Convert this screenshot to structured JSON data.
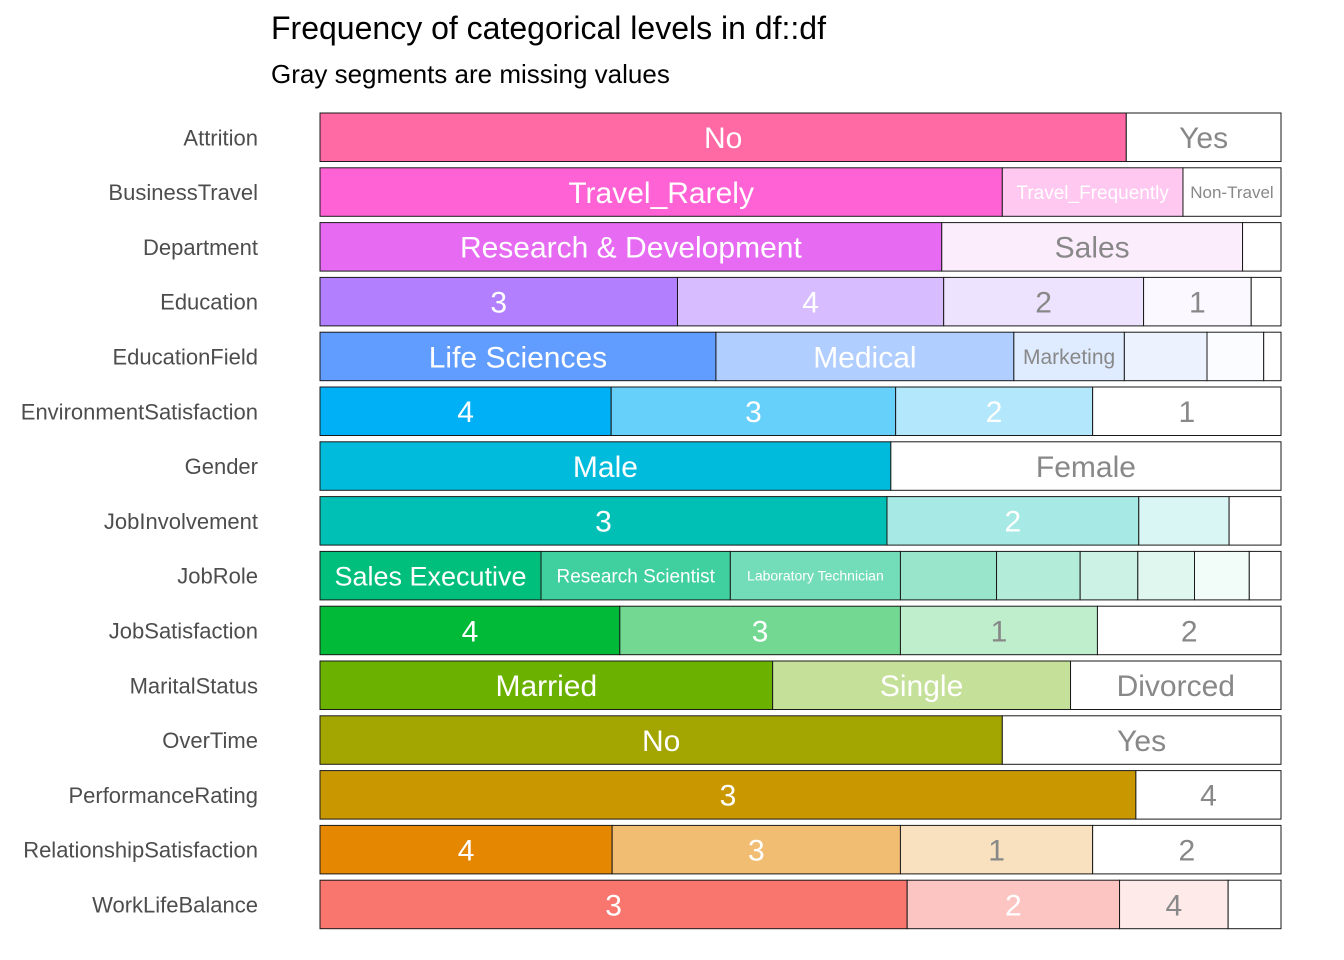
{
  "title": "Frequency of categorical levels in df::df",
  "subtitle": "Gray segments are missing values",
  "chart_data": {
    "type": "bar",
    "orientation": "horizontal-stacked-proportion",
    "title": "Frequency of categorical levels in df::df",
    "subtitle": "Gray segments are missing values",
    "xlim": [
      0,
      1
    ],
    "rows": [
      {
        "name": "Attrition",
        "color": "#FF69A4",
        "segments": [
          {
            "label": "No",
            "value": 0.839,
            "shade": 1.0
          },
          {
            "label": "Yes",
            "value": 0.161,
            "shade": 0.0
          }
        ]
      },
      {
        "name": "BusinessTravel",
        "color": "#FF62D4",
        "segments": [
          {
            "label": "Travel_Rarely",
            "value": 0.71,
            "shade": 1.0
          },
          {
            "label": "Travel_Frequently",
            "value": 0.188,
            "shade": 0.35
          },
          {
            "label": "Non-Travel",
            "value": 0.102,
            "shade": 0.0
          }
        ]
      },
      {
        "name": "Department",
        "color": "#E66AF2",
        "segments": [
          {
            "label": "Research & Development",
            "value": 0.647,
            "shade": 1.0
          },
          {
            "label": "Sales",
            "value": 0.313,
            "shade": 0.12
          },
          {
            "label": "",
            "value": 0.04,
            "shade": 0.0
          }
        ]
      },
      {
        "name": "Education",
        "color": "#B280FF",
        "segments": [
          {
            "label": "3",
            "value": 0.372,
            "shade": 1.0
          },
          {
            "label": "4",
            "value": 0.277,
            "shade": 0.52
          },
          {
            "label": "2",
            "value": 0.208,
            "shade": 0.22
          },
          {
            "label": "1",
            "value": 0.112,
            "shade": 0.05
          },
          {
            "label": "",
            "value": 0.031,
            "shade": 0.0
          }
        ]
      },
      {
        "name": "EducationField",
        "color": "#619CFF",
        "segments": [
          {
            "label": "Life Sciences",
            "value": 0.412,
            "shade": 1.0
          },
          {
            "label": "Medical",
            "value": 0.31,
            "shade": 0.5
          },
          {
            "label": "Marketing",
            "value": 0.115,
            "shade": 0.2
          },
          {
            "label": "",
            "value": 0.086,
            "shade": 0.12
          },
          {
            "label": "",
            "value": 0.059,
            "shade": 0.03
          },
          {
            "label": "",
            "value": 0.018,
            "shade": 0.0
          }
        ]
      },
      {
        "name": "EnvironmentSatisfaction",
        "color": "#00B0F6",
        "segments": [
          {
            "label": "4",
            "value": 0.303,
            "shade": 1.0
          },
          {
            "label": "3",
            "value": 0.296,
            "shade": 0.6
          },
          {
            "label": "2",
            "value": 0.205,
            "shade": 0.3
          },
          {
            "label": "1",
            "value": 0.196,
            "shade": 0.0
          }
        ]
      },
      {
        "name": "Gender",
        "color": "#00BBDB",
        "segments": [
          {
            "label": "Male",
            "value": 0.594,
            "shade": 1.0
          },
          {
            "label": "Female",
            "value": 0.406,
            "shade": 0.0
          }
        ]
      },
      {
        "name": "JobInvolvement",
        "color": "#00BFB4",
        "segments": [
          {
            "label": "3",
            "value": 0.59,
            "shade": 1.0
          },
          {
            "label": "2",
            "value": 0.262,
            "shade": 0.35
          },
          {
            "label": "",
            "value": 0.094,
            "shade": 0.15
          },
          {
            "label": "",
            "value": 0.054,
            "shade": 0.0
          }
        ]
      },
      {
        "name": "JobRole",
        "color": "#00BF7D",
        "segments": [
          {
            "label": "Sales Executive",
            "value": 0.23,
            "shade": 1.0
          },
          {
            "label": "Research Scientist",
            "value": 0.197,
            "shade": 0.75
          },
          {
            "label": "Laboratory Technician",
            "value": 0.177,
            "shade": 0.55
          },
          {
            "label": "",
            "value": 0.1,
            "shade": 0.4
          },
          {
            "label": "",
            "value": 0.087,
            "shade": 0.3
          },
          {
            "label": "",
            "value": 0.06,
            "shade": 0.2
          },
          {
            "label": "",
            "value": 0.059,
            "shade": 0.12
          },
          {
            "label": "",
            "value": 0.057,
            "shade": 0.05
          },
          {
            "label": "",
            "value": 0.033,
            "shade": 0.0
          }
        ]
      },
      {
        "name": "JobSatisfaction",
        "color": "#00BA38",
        "segments": [
          {
            "label": "4",
            "value": 0.312,
            "shade": 1.0
          },
          {
            "label": "3",
            "value": 0.292,
            "shade": 0.55
          },
          {
            "label": "1",
            "value": 0.205,
            "shade": 0.25
          },
          {
            "label": "2",
            "value": 0.191,
            "shade": 0.0
          }
        ]
      },
      {
        "name": "MaritalStatus",
        "color": "#6BB100",
        "segments": [
          {
            "label": "Married",
            "value": 0.471,
            "shade": 1.0
          },
          {
            "label": "Single",
            "value": 0.31,
            "shade": 0.4
          },
          {
            "label": "Divorced",
            "value": 0.219,
            "shade": 0.0
          }
        ]
      },
      {
        "name": "OverTime",
        "color": "#A3A500",
        "segments": [
          {
            "label": "No",
            "value": 0.71,
            "shade": 1.0
          },
          {
            "label": "Yes",
            "value": 0.29,
            "shade": 0.0
          }
        ]
      },
      {
        "name": "PerformanceRating",
        "color": "#C99800",
        "segments": [
          {
            "label": "3",
            "value": 0.849,
            "shade": 1.0
          },
          {
            "label": "4",
            "value": 0.151,
            "shade": 0.0
          }
        ]
      },
      {
        "name": "RelationshipSatisfaction",
        "color": "#E58700",
        "segments": [
          {
            "label": "4",
            "value": 0.304,
            "shade": 1.0
          },
          {
            "label": "3",
            "value": 0.3,
            "shade": 0.55
          },
          {
            "label": "1",
            "value": 0.2,
            "shade": 0.25
          },
          {
            "label": "2",
            "value": 0.196,
            "shade": 0.0
          }
        ]
      },
      {
        "name": "WorkLifeBalance",
        "color": "#F8766D",
        "segments": [
          {
            "label": "3",
            "value": 0.611,
            "shade": 1.0
          },
          {
            "label": "2",
            "value": 0.221,
            "shade": 0.42
          },
          {
            "label": "4",
            "value": 0.113,
            "shade": 0.15
          },
          {
            "label": "",
            "value": 0.055,
            "shade": 0.0
          }
        ]
      }
    ]
  }
}
